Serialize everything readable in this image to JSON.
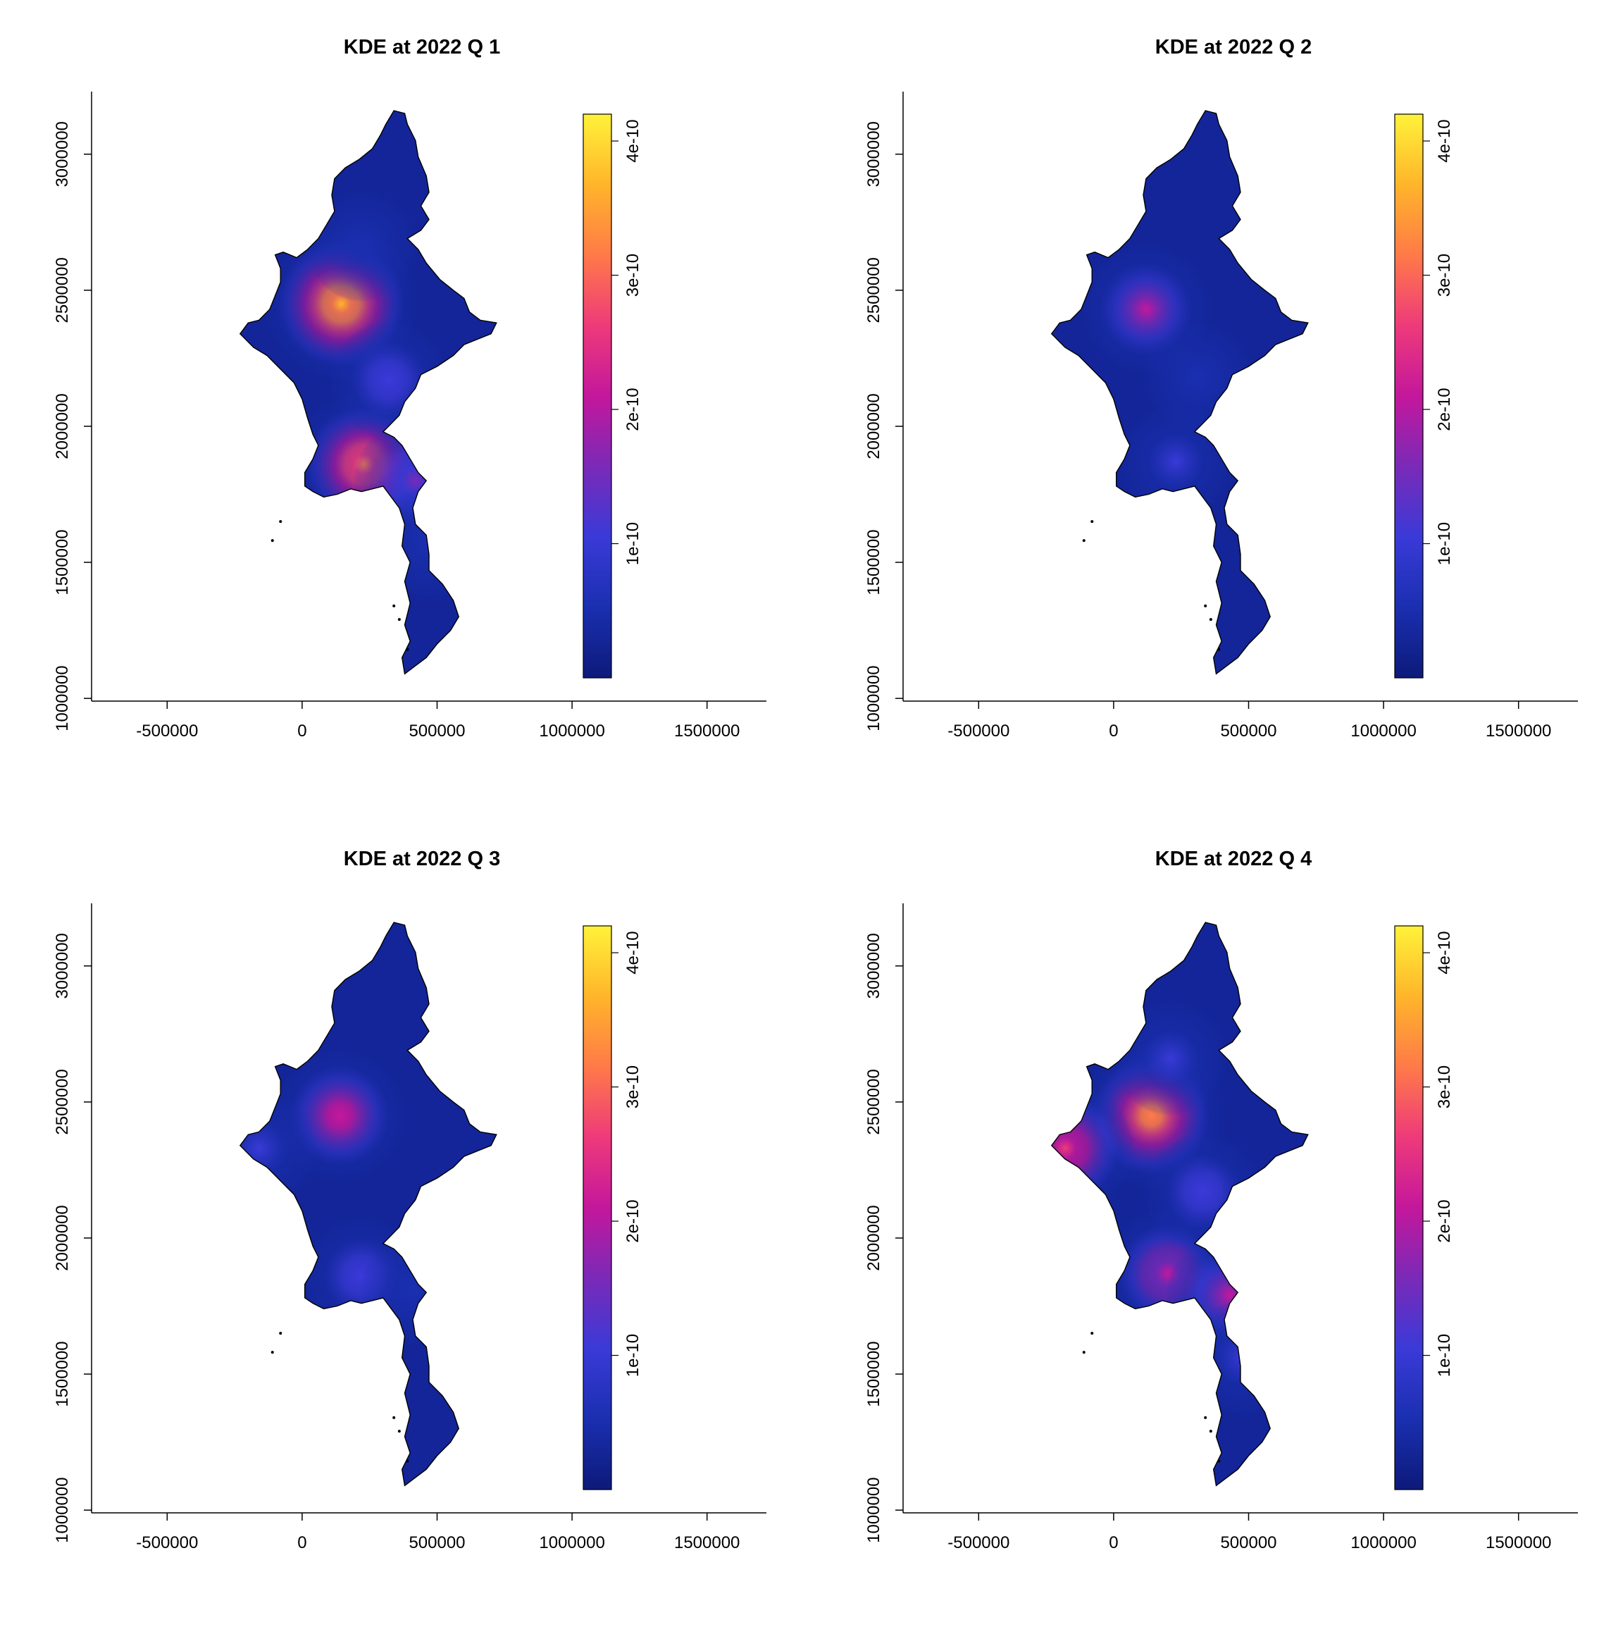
{
  "figure": {
    "colorbar_stops": [
      "#0d1a7a",
      "#1a2fb0",
      "#3a3ad8",
      "#7a2ab8",
      "#c4179c",
      "#ee3a7a",
      "#ff7a48",
      "#ffb52a",
      "#fff23a"
    ]
  },
  "chart_data": [
    {
      "type": "heatmap",
      "title": "KDE at 2022 Q 1",
      "xlabel": "",
      "ylabel": "",
      "xlim": [
        -780000,
        1720000
      ],
      "ylim": [
        990000,
        3230000
      ],
      "xticks": [
        "-500000",
        "0",
        "500000",
        "1000000",
        "1500000"
      ],
      "yticks": [
        "1000000",
        "1500000",
        "2000000",
        "2500000",
        "3000000"
      ],
      "colorbar": {
        "range": [
          0,
          4.2e-10
        ],
        "ticks": [
          "1e-10",
          "2e-10",
          "3e-10",
          "4e-10"
        ]
      },
      "hotspots": [
        {
          "x": 145000,
          "y": 2450000,
          "density": 4.1e-10
        },
        {
          "x": 230000,
          "y": 1860000,
          "density": 3.5e-10
        },
        {
          "x": 420000,
          "y": 1800000,
          "density": 1.9e-10
        },
        {
          "x": 320000,
          "y": 2170000,
          "density": 1.5e-10
        },
        {
          "x": 220000,
          "y": 2660000,
          "density": 9e-11
        },
        {
          "x": 470000,
          "y": 1570000,
          "density": 1e-10
        }
      ]
    },
    {
      "type": "heatmap",
      "title": "KDE at 2022 Q 2",
      "xlabel": "",
      "ylabel": "",
      "xlim": [
        -780000,
        1720000
      ],
      "ylim": [
        990000,
        3230000
      ],
      "xticks": [
        "-500000",
        "0",
        "500000",
        "1000000",
        "1500000"
      ],
      "yticks": [
        "1000000",
        "1500000",
        "2000000",
        "2500000",
        "3000000"
      ],
      "colorbar": {
        "range": [
          0,
          4.2e-10
        ],
        "ticks": [
          "1e-10",
          "2e-10",
          "3e-10",
          "4e-10"
        ]
      },
      "hotspots": [
        {
          "x": 120000,
          "y": 2430000,
          "density": 2.3e-10
        },
        {
          "x": 230000,
          "y": 1870000,
          "density": 1.1e-10
        },
        {
          "x": 310000,
          "y": 2180000,
          "density": 7e-11
        }
      ]
    },
    {
      "type": "heatmap",
      "title": "KDE at 2022 Q 3",
      "xlabel": "",
      "ylabel": "",
      "xlim": [
        -780000,
        1720000
      ],
      "ylim": [
        990000,
        3230000
      ],
      "xticks": [
        "-500000",
        "0",
        "500000",
        "1000000",
        "1500000"
      ],
      "yticks": [
        "1000000",
        "1500000",
        "2000000",
        "2500000",
        "3000000"
      ],
      "colorbar": {
        "range": [
          0,
          4.2e-10
        ],
        "ticks": [
          "1e-10",
          "2e-10",
          "3e-10",
          "4e-10"
        ]
      },
      "hotspots": [
        {
          "x": 140000,
          "y": 2450000,
          "density": 2.5e-10
        },
        {
          "x": 220000,
          "y": 1860000,
          "density": 1.5e-10
        },
        {
          "x": -160000,
          "y": 2330000,
          "density": 1.2e-10
        },
        {
          "x": 420000,
          "y": 1810000,
          "density": 9e-11
        }
      ]
    },
    {
      "type": "heatmap",
      "title": "KDE at 2022 Q 4",
      "xlabel": "",
      "ylabel": "",
      "xlim": [
        -780000,
        1720000
      ],
      "ylim": [
        990000,
        3230000
      ],
      "xticks": [
        "-500000",
        "0",
        "500000",
        "1000000",
        "1500000"
      ],
      "yticks": [
        "1000000",
        "1500000",
        "2000000",
        "2500000",
        "3000000"
      ],
      "colorbar": {
        "range": [
          0,
          4.2e-10
        ],
        "ticks": [
          "1e-10",
          "2e-10",
          "3e-10",
          "4e-10"
        ]
      },
      "hotspots": [
        {
          "x": 140000,
          "y": 2450000,
          "density": 3.6e-10
        },
        {
          "x": -180000,
          "y": 2330000,
          "density": 3e-10
        },
        {
          "x": 200000,
          "y": 1870000,
          "density": 2.4e-10
        },
        {
          "x": 430000,
          "y": 1790000,
          "density": 2.2e-10
        },
        {
          "x": 330000,
          "y": 2170000,
          "density": 1.4e-10
        },
        {
          "x": 210000,
          "y": 2660000,
          "density": 1.2e-10
        },
        {
          "x": 480000,
          "y": 1560000,
          "density": 1.3e-10
        }
      ]
    }
  ]
}
